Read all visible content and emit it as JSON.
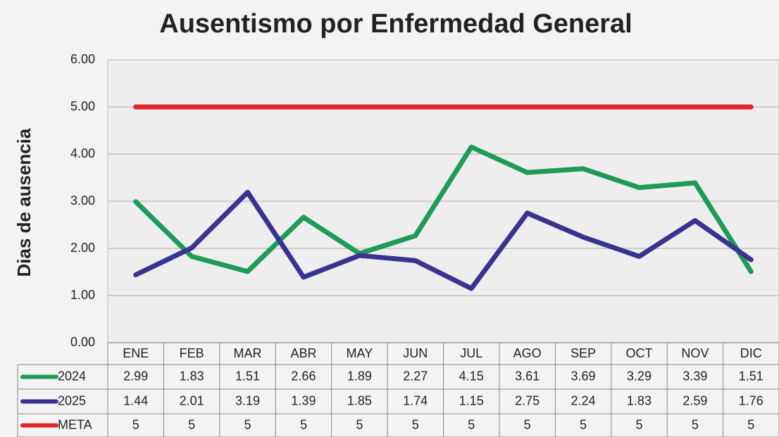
{
  "chart_data": {
    "type": "line",
    "title": "Ausentismo por Enfermedad General",
    "y_label": "Dias de ausencia",
    "categories": [
      "ENE",
      "FEB",
      "MAR",
      "ABR",
      "MAY",
      "JUN",
      "JUL",
      "AGO",
      "SEP",
      "OCT",
      "NOV",
      "DIC"
    ],
    "series": [
      {
        "name": "2024",
        "color": "#1e9b57",
        "values": [
          2.99,
          1.83,
          1.51,
          2.66,
          1.89,
          2.27,
          4.15,
          3.61,
          3.69,
          3.29,
          3.39,
          1.51
        ]
      },
      {
        "name": "2025",
        "color": "#3a3290",
        "values": [
          1.44,
          2.01,
          3.19,
          1.39,
          1.85,
          1.74,
          1.15,
          2.75,
          2.24,
          1.83,
          2.59,
          1.76
        ]
      },
      {
        "name": "META",
        "color": "#e2252b",
        "values": [
          5,
          5,
          5,
          5,
          5,
          5,
          5,
          5,
          5,
          5,
          5,
          5
        ]
      }
    ],
    "ylim": [
      0,
      6
    ],
    "yticks": [
      {
        "value": 0,
        "label": "0.00"
      },
      {
        "value": 1,
        "label": "1.00"
      },
      {
        "value": 2,
        "label": "2.00"
      },
      {
        "value": 3,
        "label": "3.00"
      },
      {
        "value": 4,
        "label": "4.00"
      },
      {
        "value": 5,
        "label": "5.00"
      },
      {
        "value": 6,
        "label": "6.00"
      }
    ],
    "grid": true,
    "data_table": true
  }
}
